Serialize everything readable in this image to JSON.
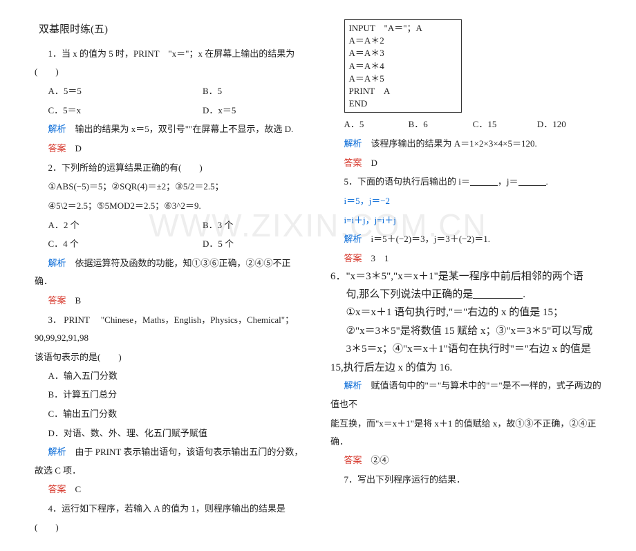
{
  "title": "双基限时练(五)",
  "L": {
    "q1": "1．当 x 的值为 5 时，PRINT　\"x＝\"；x 在屏幕上输出的结果为(　　)",
    "q1a": "A．5＝5",
    "q1b": "B．5",
    "q1c": "C．5＝x",
    "q1d": "D．x＝5",
    "q1expL": "解析",
    "q1exp": "　输出的结果为 x＝5，双引号\"\"在屏幕上不显示，故选 D.",
    "q1ansL": "答案",
    "q1ans": "　D",
    "q2": "2．下列所给的运算结果正确的有(　　)",
    "q2l1": "①ABS(−5)＝5；②SQR(4)＝±2；③5/2＝2.5；",
    "q2l2": "④5\\2＝2.5；⑤5MOD2＝2.5；⑥3^2＝9.",
    "q2a": "A．2 个",
    "q2b": "B．3 个",
    "q2c": "C．4 个",
    "q2d": "D．5 个",
    "q2expL": "解析",
    "q2exp": "　依据运算符及函数的功能，知①③⑥正确，②④⑤不正确．",
    "q2ansL": "答案",
    "q2ans": "　B",
    "q3a": "3． PRINT　 \"Chinese，Maths，English，Physics，Chemical\"；90,99,92,91,98",
    "q3b": "该语句表示的是(　　)",
    "q3oA": "A．输入五门分数",
    "q3oB": "B．计算五门总分",
    "q3oC": "C．输出五门分数",
    "q3oD": "D．对语、数、外、理、化五门赋予赋值",
    "q3expL": "解析",
    "q3exp": "　由于 PRINT 表示输出语句，该语句表示输出五门的分数，故选 C 项．",
    "q3ansL": "答案",
    "q3ans": "　C",
    "q4": "4．运行如下程序，若输入 A 的值为 1，则程序输出的结果是(　　)"
  },
  "code": [
    "INPUT　\"A＝\"；A",
    "A＝A＊2",
    "A＝A＊3",
    "A＝A＊4",
    "A＝A＊5",
    "PRINT　A",
    "END"
  ],
  "R": {
    "q4a": "A．5",
    "q4b": "B．6",
    "q4c": "C．15",
    "q4d": "D．120",
    "q4expL": "解析",
    "q4exp": "　该程序输出的结果为 A＝1×2×3×4×5＝120.",
    "q4ansL": "答案",
    "q4ans": "　D",
    "q5": "5．下面的语句执行后输出的 i＝",
    "q5m": "，j＝",
    "q5e": ".",
    "q5l1": "i＝5，j＝−2",
    "q5l2": "i=i＋j，j=i＋j",
    "q5expL": "解析",
    "q5exp": "　i＝5＋(−2)＝3，j＝3＋(−2)＝1.",
    "q5ansL": "答案",
    "q5ans": "　3　1",
    "q6a": "6．\"x＝3＊5\",\"x＝x＋1\"是某一程序中前后相邻的两个语",
    "q6b": "句,那么下列说法中正确的是",
    "q6b2": ".",
    "q6c": "①x＝x＋1 语句执行时,\"＝\"右边的 x 的值是 15；",
    "q6d": "②\"x＝3＊5\"是将数值 15 赋给 x；③\"x＝3＊5\"可以写成",
    "q6e": "3＊5＝x；④\"x＝x＋1\"语句在执行时\"＝\"右边 x 的值是",
    "q6f": "15,执行后左边 x 的值为 16.",
    "q6expL": "解析",
    "q6exp1": "　赋值语句中的\"＝\"与算术中的\"＝\"是不一样的，式子两边的值也不",
    "q6exp2": "能互换，而\"x＝x＋1\"是将 x＋1 的值赋给 x，故①③不正确，②④正确．",
    "q6ansL": "答案",
    "q6ans": "　②④",
    "q7": "7．写出下列程序运行的结果．"
  },
  "wm": "WWW.ZIXIN.COM.CN"
}
